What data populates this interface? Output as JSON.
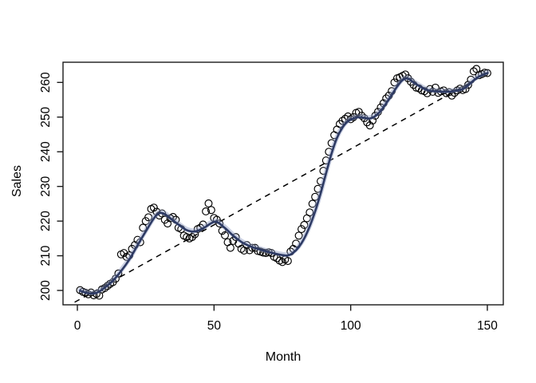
{
  "figure": {
    "kind": "r-base-scatterplot-with-loess-and-linear-trend",
    "background": "#ffffff"
  },
  "labels": {
    "xlabel": "Month",
    "ylabel": "Sales"
  },
  "colors": {
    "point_stroke": "#000000",
    "smooth_line": "#2d3a64",
    "smooth_halo": "#8e9cc4",
    "dashed_trend": "#000000",
    "box": "#1a1a1a",
    "text": "#000000"
  },
  "chart_data": {
    "type": "scatter",
    "title": "",
    "xlabel": "Month",
    "ylabel": "Sales",
    "xlim": [
      -5.3,
      155.8
    ],
    "ylim": [
      195.9,
      265.8
    ],
    "x_ticks": [
      0,
      50,
      100,
      150
    ],
    "y_ticks": [
      200,
      210,
      220,
      230,
      240,
      250,
      260
    ],
    "grid": false,
    "legend": "none",
    "series": [
      {
        "name": "observed-sales",
        "type": "scatter",
        "marker": "open-circle",
        "color": "#000000",
        "x_start": 1,
        "x_step": 1,
        "values": [
          200.1,
          199.6,
          199.3,
          198.9,
          199.4,
          198.6,
          199.0,
          198.5,
          200.3,
          200.7,
          201.3,
          201.9,
          202.4,
          203.4,
          204.9,
          210.4,
          210.8,
          209.7,
          210.1,
          212.0,
          213.1,
          214.6,
          213.9,
          218.1,
          220.0,
          221.1,
          223.5,
          223.9,
          222.7,
          221.6,
          222.2,
          220.4,
          219.3,
          220.8,
          221.2,
          220.4,
          218.1,
          217.7,
          215.8,
          215.4,
          215.0,
          215.4,
          216.2,
          217.7,
          218.1,
          219.0,
          222.8,
          225.1,
          223.2,
          220.9,
          220.4,
          219.3,
          217.2,
          215.9,
          213.9,
          212.3,
          214.3,
          215.4,
          213.5,
          212.0,
          211.5,
          213.1,
          211.6,
          212.3,
          212.3,
          211.4,
          211.2,
          210.9,
          210.8,
          211.0,
          210.8,
          209.7,
          209.3,
          208.6,
          208.2,
          208.9,
          208.5,
          211.2,
          212.0,
          213.5,
          215.8,
          217.7,
          218.9,
          220.8,
          222.5,
          225.0,
          227.0,
          229.3,
          231.5,
          234.5,
          237.5,
          240.0,
          242.5,
          244.8,
          246.4,
          248.0,
          248.9,
          249.5,
          250.2,
          249.4,
          250.0,
          251.2,
          251.5,
          250.4,
          249.7,
          248.5,
          247.6,
          249.0,
          250.4,
          251.5,
          252.8,
          254.0,
          255.4,
          256.2,
          257.5,
          260.0,
          261.2,
          261.5,
          261.9,
          262.3,
          261.2,
          260.2,
          259.3,
          258.5,
          258.3,
          257.7,
          257.5,
          256.9,
          258.1,
          257.3,
          258.5,
          257.0,
          257.4,
          257.7,
          256.9,
          257.2,
          256.2,
          257.0,
          257.7,
          258.2,
          257.8,
          258.1,
          259.3,
          260.8,
          263.2,
          263.9,
          262.1,
          262.4,
          262.8,
          262.7
        ]
      },
      {
        "name": "loess-smooth",
        "type": "line",
        "color": "#2d3a64",
        "halo_color": "#8e9cc4",
        "points": [
          [
            1,
            199.9
          ],
          [
            4,
            199.2
          ],
          [
            7,
            199.3
          ],
          [
            10,
            200.8
          ],
          [
            13,
            202.8
          ],
          [
            16,
            205.6
          ],
          [
            19,
            208.9
          ],
          [
            22,
            213.0
          ],
          [
            25,
            217.0
          ],
          [
            28,
            220.8
          ],
          [
            30,
            222.3
          ],
          [
            32,
            222.0
          ],
          [
            34,
            220.8
          ],
          [
            37,
            219.0
          ],
          [
            40,
            217.4
          ],
          [
            43,
            217.0
          ],
          [
            46,
            217.9
          ],
          [
            49,
            219.4
          ],
          [
            51,
            219.8
          ],
          [
            54,
            218.0
          ],
          [
            57,
            215.8
          ],
          [
            60,
            214.0
          ],
          [
            63,
            212.8
          ],
          [
            66,
            212.0
          ],
          [
            69,
            211.3
          ],
          [
            72,
            210.7
          ],
          [
            75,
            210.2
          ],
          [
            77,
            210.1
          ],
          [
            79,
            210.9
          ],
          [
            81,
            212.5
          ],
          [
            83,
            215.0
          ],
          [
            85,
            218.5
          ],
          [
            87,
            222.8
          ],
          [
            89,
            228.0
          ],
          [
            91,
            233.8
          ],
          [
            93,
            239.5
          ],
          [
            95,
            244.0
          ],
          [
            97,
            247.0
          ],
          [
            99,
            248.8
          ],
          [
            101,
            249.6
          ],
          [
            103,
            250.0
          ],
          [
            105,
            249.8
          ],
          [
            107,
            249.6
          ],
          [
            109,
            250.3
          ],
          [
            111,
            251.8
          ],
          [
            113,
            254.0
          ],
          [
            115,
            256.4
          ],
          [
            117,
            258.8
          ],
          [
            119,
            260.7
          ],
          [
            121,
            261.1
          ],
          [
            123,
            260.0
          ],
          [
            125,
            259.0
          ],
          [
            127,
            258.1
          ],
          [
            129,
            257.6
          ],
          [
            132,
            257.4
          ],
          [
            135,
            257.3
          ],
          [
            138,
            257.5
          ],
          [
            141,
            258.1
          ],
          [
            143,
            259.2
          ],
          [
            145,
            260.6
          ],
          [
            147,
            261.7
          ],
          [
            150,
            262.7
          ]
        ]
      },
      {
        "name": "linear-trend",
        "type": "dashed-line",
        "color": "#000000",
        "points": [
          [
            -1,
            196.6
          ],
          [
            150.5,
            262.9
          ]
        ]
      }
    ]
  }
}
